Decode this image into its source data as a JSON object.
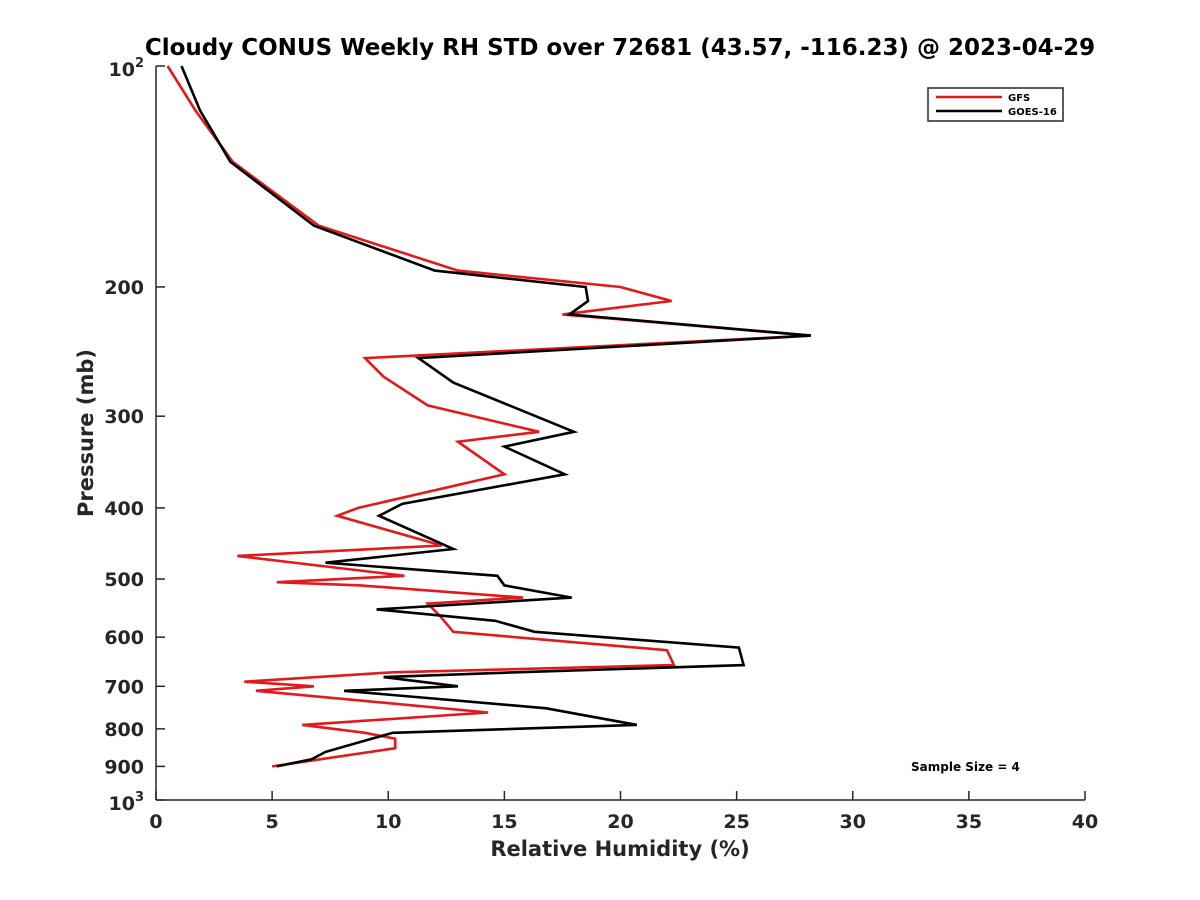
{
  "chart_data": {
    "type": "line",
    "title": "Cloudy CONUS Weekly RH STD over 72681 (43.57, -116.23) @ 2023-04-29",
    "xlabel": "Relative Humidity (%)",
    "ylabel": "Pressure (mb)",
    "xlim": [
      0,
      40
    ],
    "ylim": [
      100,
      1000
    ],
    "y_scale": "log",
    "y_reversed": true,
    "grid": false,
    "legend_position": "top-right",
    "x_ticks": [
      "0",
      "5",
      "10",
      "15",
      "20",
      "25",
      "30",
      "35",
      "40"
    ],
    "y_ticks": [
      {
        "value": 100,
        "base": "10",
        "exp": "2"
      },
      {
        "value": 200,
        "label": "200"
      },
      {
        "value": 300,
        "label": "300"
      },
      {
        "value": 400,
        "label": "400"
      },
      {
        "value": 500,
        "label": "500"
      },
      {
        "value": 600,
        "label": "600"
      },
      {
        "value": 700,
        "label": "700"
      },
      {
        "value": 800,
        "label": "800"
      },
      {
        "value": 900,
        "label": "900"
      },
      {
        "value": 1000,
        "base": "10",
        "exp": "3"
      }
    ],
    "annotation": "Sample Size = 4",
    "series": [
      {
        "name": "GFS",
        "color": "#e31a1c",
        "points": [
          [
            0.5,
            100
          ],
          [
            1.7,
            115
          ],
          [
            3.3,
            135
          ],
          [
            7.0,
            165
          ],
          [
            13.0,
            190
          ],
          [
            20.0,
            200
          ],
          [
            22.2,
            209
          ],
          [
            17.5,
            218
          ],
          [
            28.2,
            233
          ],
          [
            9.0,
            250
          ],
          [
            9.8,
            265
          ],
          [
            11.7,
            290
          ],
          [
            16.5,
            315
          ],
          [
            13.0,
            325
          ],
          [
            15.0,
            360
          ],
          [
            8.7,
            400
          ],
          [
            7.8,
            410
          ],
          [
            12.3,
            450
          ],
          [
            3.5,
            465
          ],
          [
            10.7,
            495
          ],
          [
            5.2,
            505
          ],
          [
            8.8,
            510
          ],
          [
            15.8,
            530
          ],
          [
            11.7,
            540
          ],
          [
            12.2,
            560
          ],
          [
            12.8,
            590
          ],
          [
            22.0,
            625
          ],
          [
            22.3,
            655
          ],
          [
            10.2,
            670
          ],
          [
            3.8,
            690
          ],
          [
            6.8,
            700
          ],
          [
            4.3,
            710
          ],
          [
            14.3,
            760
          ],
          [
            6.3,
            790
          ],
          [
            9.0,
            810
          ],
          [
            10.3,
            825
          ],
          [
            10.3,
            850
          ],
          [
            5.0,
            900
          ]
        ]
      },
      {
        "name": "GOES-16",
        "color": "#000000",
        "points": [
          [
            1.1,
            100
          ],
          [
            1.9,
            115
          ],
          [
            3.2,
            135
          ],
          [
            6.8,
            165
          ],
          [
            12.0,
            190
          ],
          [
            18.5,
            200
          ],
          [
            18.6,
            209
          ],
          [
            17.8,
            218
          ],
          [
            28.2,
            233
          ],
          [
            11.3,
            250
          ],
          [
            12.8,
            270
          ],
          [
            18.0,
            315
          ],
          [
            15.0,
            330
          ],
          [
            17.6,
            360
          ],
          [
            10.6,
            395
          ],
          [
            9.6,
            410
          ],
          [
            12.8,
            455
          ],
          [
            7.3,
            475
          ],
          [
            14.7,
            495
          ],
          [
            15.0,
            510
          ],
          [
            17.9,
            530
          ],
          [
            9.5,
            550
          ],
          [
            14.6,
            570
          ],
          [
            16.3,
            590
          ],
          [
            25.1,
            620
          ],
          [
            25.3,
            655
          ],
          [
            15.5,
            670
          ],
          [
            9.8,
            680
          ],
          [
            13.0,
            700
          ],
          [
            8.1,
            710
          ],
          [
            16.8,
            750
          ],
          [
            20.7,
            790
          ],
          [
            10.2,
            810
          ],
          [
            9.0,
            830
          ],
          [
            7.3,
            860
          ],
          [
            6.7,
            880
          ],
          [
            5.2,
            900
          ]
        ]
      }
    ]
  }
}
